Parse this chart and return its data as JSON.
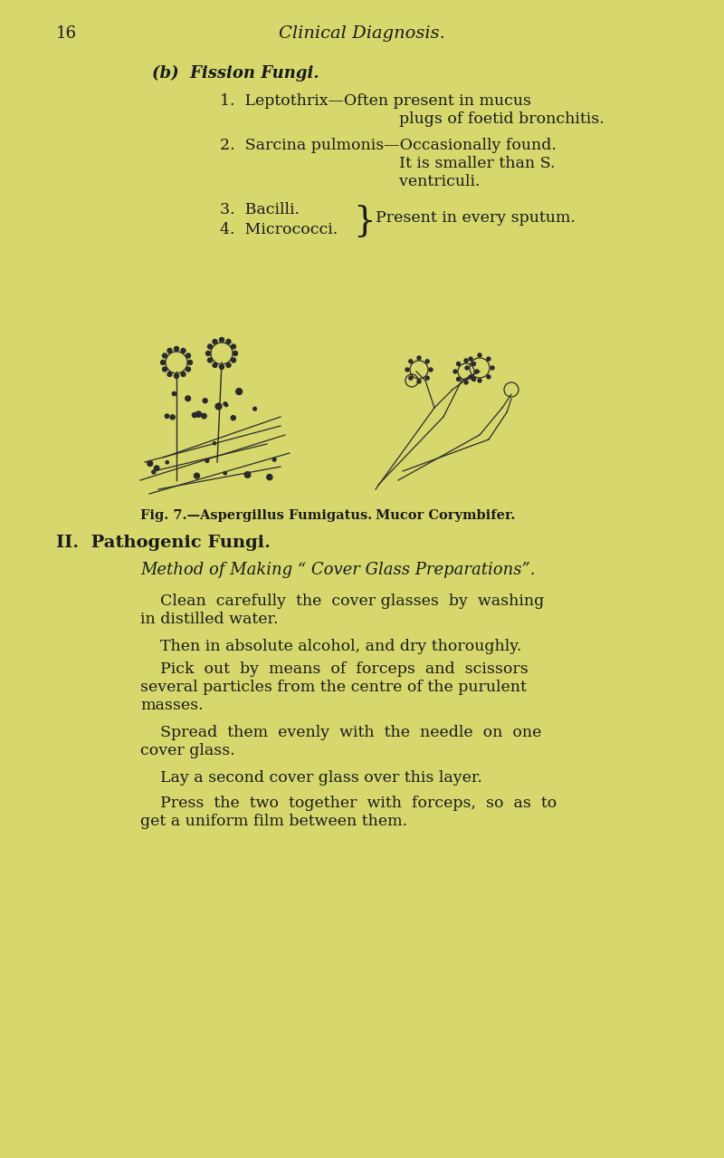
{
  "bg_color": "#d9d97a",
  "page_bg": "#d6d870",
  "text_color": "#1a1a1a",
  "page_number": "16",
  "header": "Clinical Diagnosis.",
  "section_b_title": "(b)  Fission Fungi.",
  "items": [
    "1.  Leptothrix—Often present in mucus\n                                          plugs of foetid bronchitis.",
    "2.  Sarcina pulmonis—Occasionally found.\n                                          It is smaller than S.\n                                          ventriculi.",
    "3.  Bacilli.    } Present in every sputum.",
    "4.  Micrococci."
  ],
  "fig_caption_left": "Fig. 7.—Aspergillus Fumigatus.",
  "fig_caption_right": "Mucor Corymbifer.",
  "section_ii_title": "II.  Pathogenic Fungi.",
  "method_title": "Method of Making “ Cover Glass Preparations”.",
  "paragraphs": [
    "    Clean  carefully  the  cover glasses  by  washing\nin distilled water.",
    "    Then in absolute alcohol, and dry thoroughly.",
    "    Pick  out  by  means  of  forceps  and  scissors\nseveral particles from the centre of the purulent\nmasses.",
    "    Spread  them  evenly  with  the  needle  on  one\ncover glass.",
    "    Lay a second cover glass over this layer.",
    "    Press  the  two  together  with  forceps,  so  as  to\nget a uniform film between them."
  ]
}
